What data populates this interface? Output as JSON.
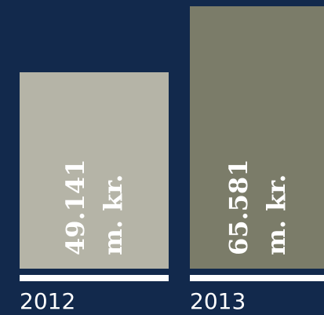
{
  "chart_data": {
    "type": "bar",
    "categories": [
      "2012",
      "2013"
    ],
    "values": [
      49141,
      65581
    ],
    "value_labels": [
      "49.141 m. kr.",
      "65.581 m. kr."
    ],
    "colors": [
      "#b5b4a7",
      "#7b7c69"
    ]
  }
}
